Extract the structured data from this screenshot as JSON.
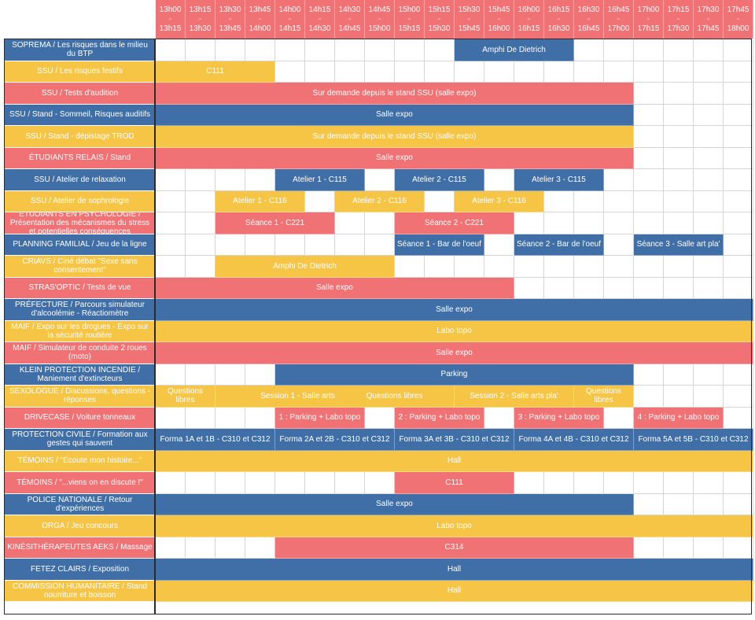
{
  "time_slots": [
    {
      "start": "13h00",
      "end": "13h15"
    },
    {
      "start": "13h15",
      "end": "13h30"
    },
    {
      "start": "13h30",
      "end": "13h45"
    },
    {
      "start": "13h45",
      "end": "14h00"
    },
    {
      "start": "14h00",
      "end": "14h15"
    },
    {
      "start": "14h15",
      "end": "14h30"
    },
    {
      "start": "14h30",
      "end": "14h45"
    },
    {
      "start": "14h45",
      "end": "15h00"
    },
    {
      "start": "15h00",
      "end": "15h15"
    },
    {
      "start": "15h15",
      "end": "15h30"
    },
    {
      "start": "15h30",
      "end": "15h45"
    },
    {
      "start": "15h45",
      "end": "16h00"
    },
    {
      "start": "16h00",
      "end": "16h15"
    },
    {
      "start": "16h15",
      "end": "16h30"
    },
    {
      "start": "16h30",
      "end": "16h45"
    },
    {
      "start": "16h45",
      "end": "17h00"
    },
    {
      "start": "17h00",
      "end": "17h15"
    },
    {
      "start": "17h15",
      "end": "17h30"
    },
    {
      "start": "17h30",
      "end": "17h45"
    },
    {
      "start": "17h45",
      "end": "18h00"
    }
  ],
  "dash": "-",
  "colors": {
    "blue": "#3f6fa6",
    "yellow": "#f7c545",
    "red": "#f07275"
  },
  "rows": [
    {
      "label": "SOPREMA / Les risques dans le milieu du BTP",
      "color": "blue",
      "events": [
        {
          "start": 10,
          "span": 4,
          "text": "Amphi De Dietrich"
        }
      ]
    },
    {
      "label": "SSU / Les risques festifs",
      "color": "yellow",
      "events": [
        {
          "start": 0,
          "span": 4,
          "text": "C111"
        }
      ]
    },
    {
      "label": "SSU / Tests d'audition",
      "color": "red",
      "events": [
        {
          "start": 0,
          "span": 16,
          "text": "Sur demande depuis le stand SSU (salle expo)"
        }
      ]
    },
    {
      "label": "SSU / Stand - Sommeil, Risques auditifs",
      "color": "blue",
      "events": [
        {
          "start": 0,
          "span": 16,
          "text": "Salle expo"
        }
      ]
    },
    {
      "label": "SSU / Stand - dépistage TROD",
      "color": "yellow",
      "events": [
        {
          "start": 0,
          "span": 16,
          "text": "Sur demande depuis le stand SSU (salle expo)"
        }
      ]
    },
    {
      "label": "ÉTUDIANTS RELAIS / Stand",
      "color": "red",
      "events": [
        {
          "start": 0,
          "span": 16,
          "text": "Salle expo"
        }
      ]
    },
    {
      "label": "SSU / Atelier de relaxation",
      "color": "blue",
      "events": [
        {
          "start": 4,
          "span": 3,
          "text": "Atelier 1 - C115"
        },
        {
          "start": 8,
          "span": 3,
          "text": "Atelier 2 - C115"
        },
        {
          "start": 12,
          "span": 3,
          "text": "Atelier 3 - C115"
        }
      ]
    },
    {
      "label": "SSU / Atelier de sophrologie",
      "color": "yellow",
      "events": [
        {
          "start": 2,
          "span": 3,
          "text": "Atelier 1 - C116"
        },
        {
          "start": 6,
          "span": 3,
          "text": "Atelier 2 - C116"
        },
        {
          "start": 10,
          "span": 3,
          "text": "Atelier 3 - C116"
        }
      ]
    },
    {
      "label": "ETUDIANTS EN PSYCHOLOGIE / Présentation des mécanismes du stress et potentielles conséquences",
      "color": "red",
      "events": [
        {
          "start": 2,
          "span": 4,
          "text": "Séance 1 - C221"
        },
        {
          "start": 8,
          "span": 4,
          "text": "Séance 2 - C221"
        }
      ]
    },
    {
      "label": "PLANNING FAMILIAL / Jeu de la ligne",
      "color": "blue",
      "events": [
        {
          "start": 8,
          "span": 3,
          "text": "Séance 1 - Bar de l'oeuf"
        },
        {
          "start": 12,
          "span": 3,
          "text": "Séance 2 - Bar de l'oeuf"
        },
        {
          "start": 16,
          "span": 3,
          "text": "Séance 3 - Salle art pla'"
        }
      ]
    },
    {
      "label": "CRIAVS / Ciné débat \"Sexe sans consentement\"",
      "color": "yellow",
      "events": [
        {
          "start": 2,
          "span": 6,
          "text": "Amphi De Dietrich"
        }
      ]
    },
    {
      "label": "STRAS'OPTIC / Tests de vue",
      "color": "red",
      "events": [
        {
          "start": 0,
          "span": 12,
          "text": "Salle expo"
        }
      ]
    },
    {
      "label": "PRÉFECTURE / Parcours simulateur d'alcoolémie - Réactiomètre",
      "color": "blue",
      "events": [
        {
          "start": 0,
          "span": 20,
          "text": "Salle expo"
        }
      ]
    },
    {
      "label": "MAIF / Expo sur les drogues - Expo sur la sécurité routière",
      "color": "yellow",
      "events": [
        {
          "start": 0,
          "span": 20,
          "text": "Labo topo"
        }
      ]
    },
    {
      "label": "MAIF / Simulateur de conduite 2 roues (moto)",
      "color": "red",
      "events": [
        {
          "start": 0,
          "span": 20,
          "text": "Salle expo"
        }
      ]
    },
    {
      "label": "KLEIN PROTECTION INCENDIE / Maniement d'extincteurs",
      "color": "blue",
      "events": [
        {
          "start": 4,
          "span": 12,
          "text": "Parking"
        }
      ]
    },
    {
      "label": "SEXOLOGUE / Discussions, questions - réponses",
      "color": "yellow",
      "events": [
        {
          "start": 0,
          "span": 2,
          "text": "Questions libres"
        },
        {
          "start": 2,
          "span": 6,
          "text": "Session 1 - Salle arts pla'"
        },
        {
          "start": 6,
          "span": 4,
          "text": "Questions libres"
        },
        {
          "start": 10,
          "span": 4,
          "text": "Session 2 - Salle arts pla'"
        },
        {
          "start": 14,
          "span": 2,
          "text": "Questions libres"
        }
      ]
    },
    {
      "label": "DRIVECASE / Voiture tonneaux",
      "color": "red",
      "events": [
        {
          "start": 4,
          "span": 3,
          "text": "1 : Parking + Labo topo"
        },
        {
          "start": 8,
          "span": 3,
          "text": "2 : Parking + Labo topo"
        },
        {
          "start": 12,
          "span": 3,
          "text": "3 : Parking + Labo topo"
        },
        {
          "start": 16,
          "span": 3,
          "text": "4 : Parking + Labo topo"
        }
      ]
    },
    {
      "label": "PROTECTION CIVILE / Formation aux gestes qui sauvent",
      "color": "blue",
      "events": [
        {
          "start": 0,
          "span": 4,
          "text": "Forma 1A et 1B - C310 et C312"
        },
        {
          "start": 4,
          "span": 4,
          "text": "Forma 2A et 2B - C310 et C312"
        },
        {
          "start": 8,
          "span": 4,
          "text": "Forma 3A et 3B - C310 et C312"
        },
        {
          "start": 12,
          "span": 4,
          "text": "Forma 4A et 4B - C310 et C312"
        },
        {
          "start": 16,
          "span": 4,
          "text": "Forma 5A et 5B - C310 et C312"
        }
      ]
    },
    {
      "label": "TÉMOINS / \"Écoute mon histoire...\"",
      "color": "yellow",
      "events": [
        {
          "start": 0,
          "span": 20,
          "text": "Hall"
        }
      ]
    },
    {
      "label": "TÉMOINS / \"...viens on en discute !\"",
      "color": "red",
      "events": [
        {
          "start": 8,
          "span": 4,
          "text": "C111"
        }
      ]
    },
    {
      "label": "POLICE NATIONALE / Retour d'expériences",
      "color": "blue",
      "events": [
        {
          "start": 0,
          "span": 16,
          "text": "Salle expo"
        }
      ]
    },
    {
      "label": "ORGA / Jeu concours",
      "color": "yellow",
      "events": [
        {
          "start": 0,
          "span": 20,
          "text": "Labo topo"
        }
      ]
    },
    {
      "label": "KINÉSITHÉRAPEUTES AEKS / Massage",
      "color": "red",
      "events": [
        {
          "start": 4,
          "span": 12,
          "text": "C314"
        }
      ]
    },
    {
      "label": "FETEZ CLAIRS / Exposition",
      "color": "blue",
      "events": [
        {
          "start": 0,
          "span": 20,
          "text": "Hall"
        }
      ]
    },
    {
      "label": "COMMISSION HUMANITAIRE / Stand nourriture et boisson",
      "color": "yellow",
      "events": [
        {
          "start": 0,
          "span": 20,
          "text": "Hall"
        }
      ]
    }
  ]
}
